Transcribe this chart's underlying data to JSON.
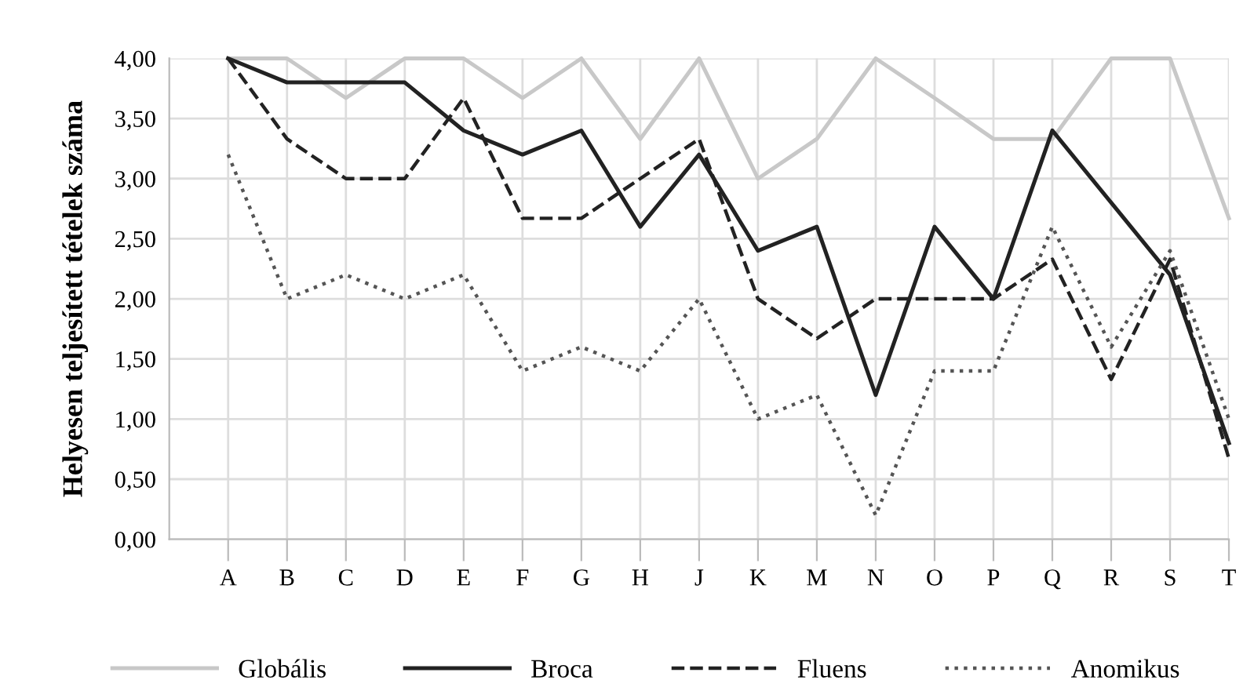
{
  "chart_data": {
    "type": "line",
    "ylabel": "Helyesen teljesített tételek száma",
    "categories": [
      "A",
      "B",
      "C",
      "D",
      "E",
      "F",
      "G",
      "H",
      "J",
      "K",
      "M",
      "N",
      "O",
      "P",
      "Q",
      "R",
      "S",
      "T"
    ],
    "series": [
      {
        "name": "Globális",
        "color": "#c8c8c8",
        "line_style": "solid",
        "values": [
          4,
          4,
          3.67,
          4,
          4,
          3.67,
          4,
          3.33,
          4,
          3,
          3.33,
          4,
          3.67,
          3.33,
          3.33,
          4,
          4,
          2.67
        ]
      },
      {
        "name": "Broca",
        "color": "#222222",
        "line_style": "solid",
        "values": [
          4,
          3.8,
          3.8,
          3.8,
          3.4,
          3.2,
          3.4,
          2.6,
          3.2,
          2.4,
          2.6,
          1.2,
          2.6,
          2,
          3.4,
          2.8,
          2.2,
          0.8
        ]
      },
      {
        "name": "Fluens",
        "color": "#222222",
        "line_style": "dashed",
        "values": [
          4,
          3.33,
          3,
          3,
          3.67,
          2.67,
          2.67,
          3,
          3.33,
          2,
          1.67,
          2,
          2,
          2,
          2.33,
          1.33,
          2.33,
          0.67
        ]
      },
      {
        "name": "Anomikus",
        "color": "#555555",
        "line_style": "dotted",
        "values": [
          3.2,
          2,
          2.2,
          2,
          2.2,
          1.4,
          1.6,
          1.4,
          2,
          1,
          1.2,
          0.2,
          1.4,
          1.4,
          2.6,
          1.6,
          2.4,
          1
        ]
      }
    ],
    "ylim": [
      0,
      4
    ],
    "yticks": [
      {
        "value": 0,
        "label": "0,00"
      },
      {
        "value": 0.5,
        "label": "0,50"
      },
      {
        "value": 1,
        "label": "1,00"
      },
      {
        "value": 1.5,
        "label": "1,50"
      },
      {
        "value": 2,
        "label": "2,00"
      },
      {
        "value": 2.5,
        "label": "2,50"
      },
      {
        "value": 3,
        "label": "3,00"
      },
      {
        "value": 3.5,
        "label": "3,50"
      },
      {
        "value": 4,
        "label": "4,00"
      }
    ],
    "grid": true,
    "legend": "bottom",
    "marker": "none"
  }
}
